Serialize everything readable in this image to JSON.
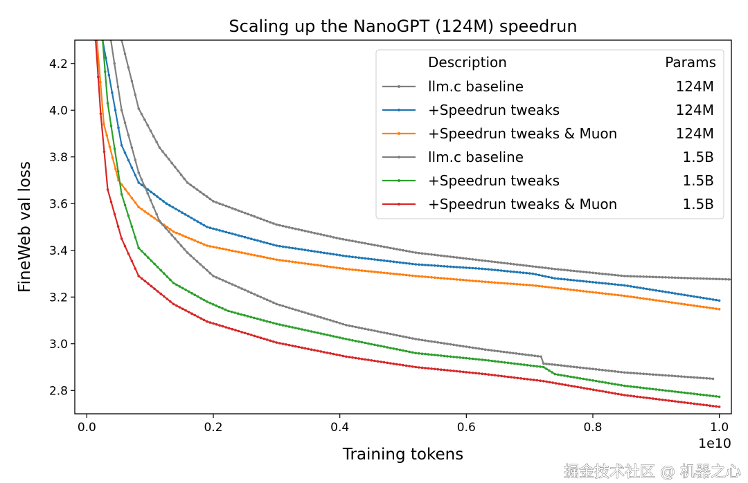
{
  "chart_data": {
    "type": "line",
    "title": "Scaling up the NanoGPT (124M) speedrun",
    "xlabel": "Training tokens",
    "ylabel": "FineWeb val loss",
    "x_offset_label": "1e10",
    "xlim": [
      -0.019,
      1.019
    ],
    "ylim": [
      2.7,
      4.3
    ],
    "xticks": [
      0.0,
      0.2,
      0.4,
      0.6,
      0.8,
      1.0
    ],
    "xtick_labels": [
      "0.0",
      "0.2",
      "0.4",
      "0.6",
      "0.8",
      "1.0"
    ],
    "yticks": [
      2.8,
      3.0,
      3.2,
      3.4,
      3.6,
      3.8,
      4.0,
      4.2
    ],
    "ytick_labels": [
      "2.8",
      "3.0",
      "3.2",
      "3.4",
      "3.6",
      "3.8",
      "4.0",
      "4.2"
    ],
    "grid": false,
    "legend": {
      "placement": "top-right",
      "header_description": "Description",
      "header_params": "Params"
    },
    "series": [
      {
        "name": "llm.c baseline",
        "params": "124M",
        "color": "#7f7f7f",
        "x": [
          0.055,
          0.082,
          0.115,
          0.159,
          0.2,
          0.3,
          0.4,
          0.52,
          0.74,
          0.85,
          1.02
        ],
        "y": [
          4.3,
          4.007,
          3.84,
          3.69,
          3.61,
          3.51,
          3.45,
          3.39,
          3.32,
          3.29,
          3.275
        ]
      },
      {
        "name": "+Speedrun tweaks",
        "params": "124M",
        "color": "#1f77b4",
        "x": [
          0.025,
          0.055,
          0.082,
          0.126,
          0.19,
          0.3,
          0.41,
          0.52,
          0.63,
          0.705,
          0.74,
          0.85,
          1.0
        ],
        "y": [
          4.3,
          3.85,
          3.69,
          3.6,
          3.5,
          3.42,
          3.375,
          3.34,
          3.32,
          3.3,
          3.28,
          3.25,
          3.185
        ]
      },
      {
        "name": "+Speedrun tweaks & Muon",
        "params": "124M",
        "color": "#ff7f0e",
        "x": [
          0.016,
          0.027,
          0.05,
          0.082,
          0.137,
          0.19,
          0.3,
          0.41,
          0.52,
          0.63,
          0.705,
          0.85,
          1.0
        ],
        "y": [
          4.3,
          3.94,
          3.7,
          3.585,
          3.48,
          3.42,
          3.36,
          3.32,
          3.29,
          3.265,
          3.25,
          3.205,
          3.148
        ]
      },
      {
        "name": "llm.c baseline",
        "params": "1.5B",
        "color": "#7f7f7f",
        "x": [
          0.038,
          0.055,
          0.082,
          0.115,
          0.159,
          0.2,
          0.3,
          0.41,
          0.52,
          0.63,
          0.718,
          0.722,
          0.74,
          0.85,
          0.99
        ],
        "y": [
          4.3,
          4.0,
          3.733,
          3.525,
          3.39,
          3.29,
          3.17,
          3.08,
          3.02,
          2.975,
          2.945,
          2.915,
          2.91,
          2.877,
          2.85
        ]
      },
      {
        "name": "+Speedrun tweaks",
        "params": "1.5B",
        "color": "#2ca02c",
        "x": [
          0.025,
          0.033,
          0.055,
          0.082,
          0.137,
          0.19,
          0.224,
          0.3,
          0.41,
          0.52,
          0.63,
          0.722,
          0.74,
          0.85,
          1.0
        ],
        "y": [
          4.3,
          4.03,
          3.64,
          3.41,
          3.26,
          3.18,
          3.14,
          3.085,
          3.02,
          2.96,
          2.93,
          2.9,
          2.87,
          2.82,
          2.773
        ]
      },
      {
        "name": "+Speedrun tweaks & Muon",
        "params": "1.5B",
        "color": "#d62728",
        "x": [
          0.014,
          0.022,
          0.033,
          0.055,
          0.082,
          0.137,
          0.19,
          0.3,
          0.41,
          0.52,
          0.63,
          0.722,
          0.85,
          1.0
        ],
        "y": [
          4.3,
          3.985,
          3.66,
          3.45,
          3.29,
          3.17,
          3.095,
          3.005,
          2.945,
          2.9,
          2.87,
          2.84,
          2.78,
          2.73
        ]
      }
    ]
  },
  "watermark": "掘金技术社区 @ 机器之心"
}
